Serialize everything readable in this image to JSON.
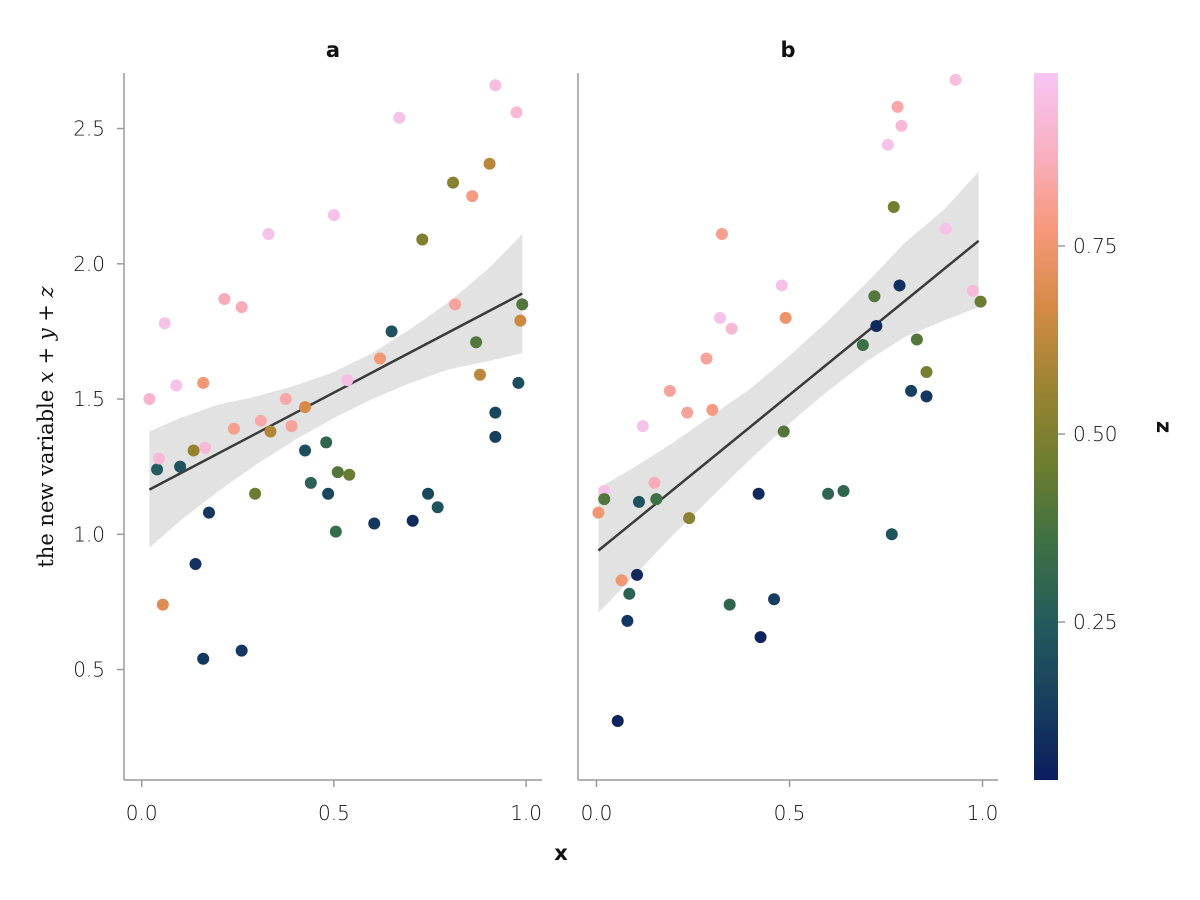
{
  "chart_data": {
    "type": "scatter",
    "xlabel": "x",
    "ylabel": "the new variable x + y + z",
    "ylim": [
      0.18,
      2.79
    ],
    "xlim": [
      -0.04,
      1.05
    ],
    "x_ticks": [
      0.0,
      0.5,
      1.0
    ],
    "x_tick_labels": [
      "0.0",
      "0.5",
      "1.0"
    ],
    "y_ticks": [
      0.5,
      1.0,
      1.5,
      2.0,
      2.5
    ],
    "y_tick_labels": [
      "0.5",
      "1.0",
      "1.5",
      "2.0",
      "2.5"
    ],
    "grid": false,
    "colorbar": {
      "label": "z",
      "range": [
        0.04,
        0.98
      ],
      "ticks": [
        0.25,
        0.5,
        0.75
      ],
      "tick_labels": [
        "0.25",
        "0.50",
        "0.75"
      ],
      "colormap": [
        "#0b1d5e",
        "#173f5f",
        "#235b5c",
        "#3d7144",
        "#6c7d2f",
        "#9b8432",
        "#d48a45",
        "#f6987a",
        "#f9b0c2",
        "#f7c6f4"
      ]
    },
    "panels": [
      {
        "title": "a",
        "fit": {
          "x0": 0.02,
          "x1": 0.99,
          "y0": 1.165,
          "y1": 1.89
        },
        "band": [
          [
            0.02,
            0.95,
            1.38
          ],
          [
            0.1,
            1.05,
            1.43
          ],
          [
            0.2,
            1.16,
            1.48
          ],
          [
            0.3,
            1.26,
            1.51
          ],
          [
            0.4,
            1.35,
            1.55
          ],
          [
            0.5,
            1.43,
            1.6
          ],
          [
            0.6,
            1.5,
            1.67
          ],
          [
            0.7,
            1.56,
            1.76
          ],
          [
            0.8,
            1.61,
            1.86
          ],
          [
            0.9,
            1.64,
            1.98
          ],
          [
            0.99,
            1.67,
            2.11
          ]
        ],
        "points": [
          {
            "x": 0.02,
            "y": 1.5,
            "z": 0.9
          },
          {
            "x": 0.04,
            "y": 1.24,
            "z": 0.25
          },
          {
            "x": 0.045,
            "y": 1.28,
            "z": 0.92
          },
          {
            "x": 0.06,
            "y": 1.78,
            "z": 0.96
          },
          {
            "x": 0.055,
            "y": 0.74,
            "z": 0.7
          },
          {
            "x": 0.09,
            "y": 1.55,
            "z": 0.96
          },
          {
            "x": 0.1,
            "y": 1.25,
            "z": 0.22
          },
          {
            "x": 0.135,
            "y": 1.31,
            "z": 0.55
          },
          {
            "x": 0.14,
            "y": 0.89,
            "z": 0.1
          },
          {
            "x": 0.16,
            "y": 0.54,
            "z": 0.12
          },
          {
            "x": 0.16,
            "y": 1.56,
            "z": 0.76
          },
          {
            "x": 0.165,
            "y": 1.32,
            "z": 0.92
          },
          {
            "x": 0.175,
            "y": 1.08,
            "z": 0.12
          },
          {
            "x": 0.215,
            "y": 1.87,
            "z": 0.86
          },
          {
            "x": 0.24,
            "y": 1.39,
            "z": 0.8
          },
          {
            "x": 0.26,
            "y": 0.57,
            "z": 0.12
          },
          {
            "x": 0.26,
            "y": 1.84,
            "z": 0.86
          },
          {
            "x": 0.295,
            "y": 1.15,
            "z": 0.45
          },
          {
            "x": 0.31,
            "y": 1.42,
            "z": 0.84
          },
          {
            "x": 0.33,
            "y": 2.11,
            "z": 0.96
          },
          {
            "x": 0.335,
            "y": 1.38,
            "z": 0.6
          },
          {
            "x": 0.375,
            "y": 1.5,
            "z": 0.84
          },
          {
            "x": 0.39,
            "y": 1.4,
            "z": 0.82
          },
          {
            "x": 0.425,
            "y": 1.31,
            "z": 0.2
          },
          {
            "x": 0.425,
            "y": 1.47,
            "z": 0.67
          },
          {
            "x": 0.44,
            "y": 1.19,
            "z": 0.28
          },
          {
            "x": 0.48,
            "y": 1.34,
            "z": 0.3
          },
          {
            "x": 0.485,
            "y": 1.15,
            "z": 0.17
          },
          {
            "x": 0.5,
            "y": 2.18,
            "z": 0.96
          },
          {
            "x": 0.505,
            "y": 1.01,
            "z": 0.33
          },
          {
            "x": 0.51,
            "y": 1.23,
            "z": 0.4
          },
          {
            "x": 0.535,
            "y": 1.57,
            "z": 0.94
          },
          {
            "x": 0.54,
            "y": 1.22,
            "z": 0.45
          },
          {
            "x": 0.605,
            "y": 1.04,
            "z": 0.12
          },
          {
            "x": 0.62,
            "y": 1.65,
            "z": 0.76
          },
          {
            "x": 0.65,
            "y": 1.75,
            "z": 0.22
          },
          {
            "x": 0.67,
            "y": 2.54,
            "z": 0.96
          },
          {
            "x": 0.705,
            "y": 1.05,
            "z": 0.08
          },
          {
            "x": 0.73,
            "y": 2.09,
            "z": 0.5
          },
          {
            "x": 0.745,
            "y": 1.15,
            "z": 0.17
          },
          {
            "x": 0.77,
            "y": 1.1,
            "z": 0.22
          },
          {
            "x": 0.81,
            "y": 2.3,
            "z": 0.52
          },
          {
            "x": 0.815,
            "y": 1.85,
            "z": 0.82
          },
          {
            "x": 0.86,
            "y": 2.25,
            "z": 0.78
          },
          {
            "x": 0.87,
            "y": 1.71,
            "z": 0.4
          },
          {
            "x": 0.88,
            "y": 1.59,
            "z": 0.62
          },
          {
            "x": 0.905,
            "y": 2.37,
            "z": 0.62
          },
          {
            "x": 0.92,
            "y": 2.66,
            "z": 0.94
          },
          {
            "x": 0.92,
            "y": 1.45,
            "z": 0.17
          },
          {
            "x": 0.92,
            "y": 1.36,
            "z": 0.15
          },
          {
            "x": 0.975,
            "y": 2.56,
            "z": 0.92
          },
          {
            "x": 0.98,
            "y": 1.56,
            "z": 0.2
          },
          {
            "x": 0.985,
            "y": 1.79,
            "z": 0.65
          },
          {
            "x": 0.99,
            "y": 1.85,
            "z": 0.4
          }
        ]
      },
      {
        "title": "b",
        "fit": {
          "x0": 0.005,
          "x1": 0.99,
          "y0": 0.94,
          "y1": 2.085
        },
        "band": [
          [
            0.005,
            0.71,
            1.17
          ],
          [
            0.1,
            0.85,
            1.25
          ],
          [
            0.2,
            1.0,
            1.34
          ],
          [
            0.3,
            1.14,
            1.44
          ],
          [
            0.4,
            1.28,
            1.54
          ],
          [
            0.5,
            1.41,
            1.66
          ],
          [
            0.6,
            1.53,
            1.79
          ],
          [
            0.7,
            1.64,
            1.93
          ],
          [
            0.8,
            1.73,
            2.08
          ],
          [
            0.9,
            1.79,
            2.2
          ],
          [
            0.99,
            1.84,
            2.34
          ]
        ],
        "points": [
          {
            "x": 0.005,
            "y": 1.08,
            "z": 0.76
          },
          {
            "x": 0.02,
            "y": 1.16,
            "z": 0.96
          },
          {
            "x": 0.02,
            "y": 1.13,
            "z": 0.4
          },
          {
            "x": 0.055,
            "y": 0.31,
            "z": 0.06
          },
          {
            "x": 0.065,
            "y": 0.83,
            "z": 0.76
          },
          {
            "x": 0.08,
            "y": 0.68,
            "z": 0.12
          },
          {
            "x": 0.085,
            "y": 0.78,
            "z": 0.28
          },
          {
            "x": 0.105,
            "y": 0.85,
            "z": 0.08
          },
          {
            "x": 0.11,
            "y": 1.12,
            "z": 0.22
          },
          {
            "x": 0.12,
            "y": 1.4,
            "z": 0.96
          },
          {
            "x": 0.15,
            "y": 1.19,
            "z": 0.86
          },
          {
            "x": 0.155,
            "y": 1.13,
            "z": 0.35
          },
          {
            "x": 0.19,
            "y": 1.53,
            "z": 0.82
          },
          {
            "x": 0.235,
            "y": 1.45,
            "z": 0.82
          },
          {
            "x": 0.24,
            "y": 1.06,
            "z": 0.52
          },
          {
            "x": 0.285,
            "y": 1.65,
            "z": 0.82
          },
          {
            "x": 0.3,
            "y": 1.46,
            "z": 0.78
          },
          {
            "x": 0.32,
            "y": 1.8,
            "z": 0.96
          },
          {
            "x": 0.325,
            "y": 2.11,
            "z": 0.8
          },
          {
            "x": 0.345,
            "y": 0.74,
            "z": 0.3
          },
          {
            "x": 0.35,
            "y": 1.76,
            "z": 0.92
          },
          {
            "x": 0.42,
            "y": 1.15,
            "z": 0.08
          },
          {
            "x": 0.425,
            "y": 0.62,
            "z": 0.06
          },
          {
            "x": 0.46,
            "y": 0.76,
            "z": 0.14
          },
          {
            "x": 0.48,
            "y": 1.92,
            "z": 0.96
          },
          {
            "x": 0.485,
            "y": 1.38,
            "z": 0.4
          },
          {
            "x": 0.49,
            "y": 1.8,
            "z": 0.74
          },
          {
            "x": 0.6,
            "y": 1.15,
            "z": 0.3
          },
          {
            "x": 0.64,
            "y": 1.16,
            "z": 0.3
          },
          {
            "x": 0.69,
            "y": 1.7,
            "z": 0.35
          },
          {
            "x": 0.72,
            "y": 1.88,
            "z": 0.4
          },
          {
            "x": 0.725,
            "y": 1.77,
            "z": 0.08
          },
          {
            "x": 0.755,
            "y": 2.44,
            "z": 0.96
          },
          {
            "x": 0.765,
            "y": 1.0,
            "z": 0.22
          },
          {
            "x": 0.77,
            "y": 2.21,
            "z": 0.48
          },
          {
            "x": 0.78,
            "y": 2.58,
            "z": 0.84
          },
          {
            "x": 0.785,
            "y": 1.92,
            "z": 0.1
          },
          {
            "x": 0.79,
            "y": 2.51,
            "z": 0.92
          },
          {
            "x": 0.815,
            "y": 1.53,
            "z": 0.14
          },
          {
            "x": 0.83,
            "y": 1.72,
            "z": 0.4
          },
          {
            "x": 0.855,
            "y": 1.6,
            "z": 0.48
          },
          {
            "x": 0.855,
            "y": 1.51,
            "z": 0.12
          },
          {
            "x": 0.905,
            "y": 2.13,
            "z": 0.96
          },
          {
            "x": 0.93,
            "y": 2.68,
            "z": 0.94
          },
          {
            "x": 0.975,
            "y": 1.9,
            "z": 0.92
          },
          {
            "x": 0.995,
            "y": 1.86,
            "z": 0.45
          }
        ]
      }
    ]
  }
}
